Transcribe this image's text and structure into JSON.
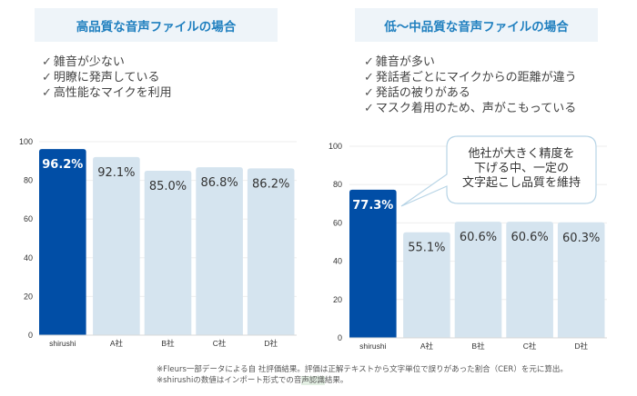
{
  "panels": {
    "left": {
      "title": "高品質な音声ファイルの場合",
      "bullets": [
        "雑音が少ない",
        "明瞭に発声している",
        "高性能なマイクを利用"
      ]
    },
    "right": {
      "title": "低〜中品質な音声ファイルの場合",
      "bullets": [
        "雑音が多い",
        "発話者ごとにマイクからの距離が違う",
        "発話の被りがある",
        "マスク着用のため、声がこもっている"
      ],
      "callout": "他社が大きく精度を\n下げる中、一定の\n文字起こし品質を維持"
    }
  },
  "colors": {
    "highlight_bar": "#014ea6",
    "other_bar": "#d5e4ef",
    "title_text": "#1f7fbf",
    "title_bg": "#eef4f9",
    "callout_border": "#b7d4e6"
  },
  "chart_data": [
    {
      "type": "bar",
      "title": "高品質な音声ファイルの場合",
      "categories": [
        "shirushi",
        "A社",
        "B社",
        "C社",
        "D社"
      ],
      "values": [
        96.2,
        92.1,
        85.0,
        86.8,
        86.2
      ],
      "labels": [
        "96.2%",
        "92.1%",
        "85.0%",
        "86.8%",
        "86.2%"
      ],
      "ylim": [
        0,
        100
      ],
      "yticks": [
        0,
        20,
        40,
        60,
        80,
        100
      ],
      "grid": true,
      "xlabel": "",
      "ylabel": ""
    },
    {
      "type": "bar",
      "title": "低〜中品質な音声ファイルの場合",
      "categories": [
        "shirushi",
        "A社",
        "B社",
        "C社",
        "D社"
      ],
      "values": [
        77.3,
        55.1,
        60.6,
        60.6,
        60.3
      ],
      "labels": [
        "77.3%",
        "55.1%",
        "60.6%",
        "60.6%",
        "60.3%"
      ],
      "ylim": [
        0,
        100
      ],
      "yticks": [
        0,
        20,
        40,
        60,
        80,
        100
      ],
      "grid": true,
      "xlabel": "",
      "ylabel": ""
    }
  ],
  "footnotes": {
    "line1": "※Fleurs一部データによる自 社評価結果。評価は正解テキストから文字単位で誤りがあった割合（CER）を元に算出。",
    "line2_pre": "※shirushiの数値はインポート形式での音",
    "line2_hl": "声認識",
    "line2_post": "結果。"
  }
}
